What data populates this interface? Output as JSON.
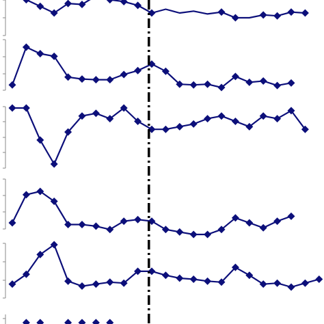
{
  "chart_data": [
    {
      "type": "line",
      "panel": 1,
      "x": [
        1,
        2,
        3,
        4,
        5,
        6,
        7,
        8,
        9,
        10,
        11,
        12,
        13,
        14,
        15,
        16,
        17,
        18,
        19,
        20,
        21,
        22
      ],
      "series": [
        {
          "values": [
            5.5,
            3.5,
            0.0,
            -3.5,
            1.5,
            1.0,
            5.5,
            3.5,
            2.5,
            0.5,
            -3.5,
            -1.5,
            -3.5,
            -2.5,
            -4.0,
            -3.0,
            -6.0,
            -6.0,
            -4.5,
            -5.0,
            -3.0,
            -3.5
          ]
        }
      ],
      "markers": "diamond",
      "visible_points": [
        1,
        2,
        3,
        4,
        5,
        6,
        7,
        8,
        9,
        10,
        11,
        16,
        17,
        19,
        20,
        21,
        22
      ]
    },
    {
      "type": "line",
      "panel": 2,
      "x": [
        1,
        2,
        3,
        4,
        5,
        6,
        7,
        8,
        9,
        10,
        11,
        12,
        13,
        14,
        15,
        16,
        17,
        18,
        19,
        20,
        21
      ],
      "series": [
        {
          "values": [
            0.0,
            5.8,
            4.8,
            4.4,
            1.2,
            0.9,
            0.8,
            0.8,
            1.6,
            2.2,
            3.2,
            2.1,
            0.1,
            0.0,
            0.1,
            -0.4,
            1.3,
            0.4,
            0.6,
            -0.1,
            0.3
          ]
        }
      ],
      "markers": "diamond"
    },
    {
      "type": "line",
      "panel": 3,
      "x": [
        1,
        2,
        3,
        4,
        5,
        6,
        7,
        8,
        9,
        10,
        11,
        12,
        13,
        14,
        15,
        16,
        17,
        18,
        19,
        20,
        21,
        22
      ],
      "series": [
        {
          "values": [
            4.0,
            4.0,
            -2.0,
            -6.5,
            -0.5,
            2.5,
            3.0,
            2.0,
            4.0,
            1.5,
            0.0,
            0.0,
            0.5,
            1.0,
            2.0,
            2.5,
            1.5,
            0.5,
            2.5,
            2.0,
            3.5,
            0.0
          ]
        }
      ],
      "markers": "diamond"
    },
    {
      "type": "line",
      "panel": 4,
      "x": [
        1,
        2,
        3,
        4,
        5,
        6,
        7,
        8,
        9,
        10,
        11,
        12,
        13,
        14,
        15,
        16,
        17,
        18,
        19,
        20,
        21
      ],
      "series": [
        {
          "values": [
            0.0,
            3.4,
            3.8,
            2.6,
            -0.2,
            -0.2,
            -0.4,
            -0.8,
            0.2,
            0.4,
            0.2,
            -0.8,
            -1.1,
            -1.4,
            -1.4,
            -0.8,
            0.6,
            0.0,
            -0.6,
            0.2,
            0.8
          ]
        }
      ],
      "markers": "diamond"
    },
    {
      "type": "line",
      "panel": 5,
      "x": [
        1,
        2,
        3,
        4,
        5,
        6,
        7,
        8,
        9,
        10,
        11,
        12,
        13,
        14,
        15,
        16,
        17,
        18,
        19,
        20,
        21,
        22,
        23
      ],
      "series": [
        {
          "values": [
            0.0,
            1.0,
            3.0,
            4.0,
            0.3,
            -0.2,
            0.0,
            0.2,
            0.1,
            1.3,
            1.3,
            0.9,
            0.6,
            0.5,
            0.3,
            0.2,
            1.7,
            0.9,
            0.0,
            0.1,
            -0.3,
            0.1,
            0.5
          ]
        }
      ],
      "markers": "diamond"
    },
    {
      "type": "line",
      "panel": 6,
      "x": [
        1,
        2,
        3,
        4,
        5,
        6,
        7,
        8,
        9,
        10,
        11,
        12,
        13,
        14,
        15,
        16,
        17,
        18,
        19,
        20,
        21,
        22
      ],
      "series": [
        {
          "values": [
            0,
            0,
            0,
            0,
            0,
            0,
            0,
            0,
            0,
            0,
            0,
            0,
            0,
            0,
            0,
            0,
            0,
            0,
            0,
            0,
            0,
            0
          ]
        }
      ],
      "markers": "diamond",
      "visible_points": [
        2,
        3,
        5,
        6,
        7,
        8
      ]
    }
  ],
  "vertical_marker": {
    "x": 10.5,
    "style": "dash-dot"
  },
  "colors": {
    "series": "#0c0f7a",
    "marker_line": "#000000",
    "axis": "#888888"
  }
}
